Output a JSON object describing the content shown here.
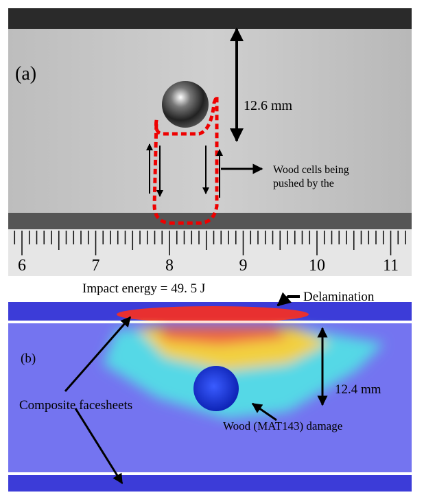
{
  "panel_a": {
    "label": "(a)",
    "dimension": "12.6 mm",
    "annotation_lines": [
      "Wood cells being",
      "pushed by the"
    ],
    "ruler_numbers": [
      "6",
      "7",
      "8",
      "9",
      "10",
      "11"
    ]
  },
  "panel_b": {
    "caption": "Impact energy = 49. 5 J",
    "label": "(b)",
    "delamination": "Delamination",
    "dimension": "12.4 mm",
    "facesheets": "Composite facesheets",
    "damage": "Wood (MAT143) damage"
  }
}
